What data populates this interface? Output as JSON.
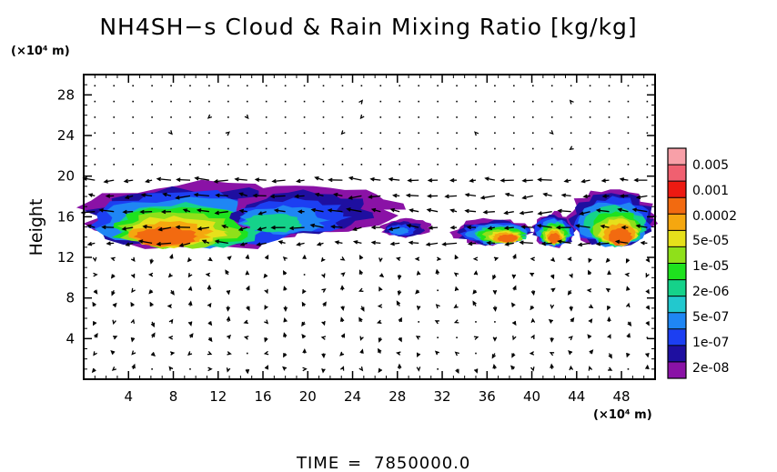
{
  "chart_data": {
    "type": "heatmap",
    "title": "NH4SH−s Cloud & Rain Mixing Ratio [kg/kg]",
    "ylabel": "Height",
    "x_unit": "(×10⁴ m)",
    "y_unit": "(×10⁴ m)",
    "xlim": [
      0,
      51
    ],
    "ylim": [
      0,
      30
    ],
    "x_ticks": [
      4,
      8,
      12,
      16,
      20,
      24,
      28,
      32,
      36,
      40,
      44,
      48
    ],
    "y_ticks": [
      4,
      8,
      12,
      16,
      20,
      24,
      28
    ],
    "colorbar": {
      "labels": [
        "0.005",
        "0.001",
        "0.0002",
        "5e-05",
        "1e-05",
        "2e-06",
        "5e-07",
        "1e-07",
        "2e-08"
      ],
      "colors": [
        "#8a12a6",
        "#1e0fa0",
        "#1c3ff2",
        "#1f86f4",
        "#22c8ce",
        "#15d28a",
        "#1ee21e",
        "#8fe01a",
        "#e6e01b",
        "#f5a70f",
        "#f26a10",
        "#ec1a12",
        "#f06070",
        "#f8a0a8"
      ]
    },
    "cloud_regions": [
      {
        "x_range": [
          0,
          21
        ],
        "y_range": [
          12.8,
          19.4
        ],
        "max_level": "0.0002",
        "core_x": [
          6,
          8
        ],
        "core_y": 13.8
      },
      {
        "x_range": [
          13,
          28
        ],
        "y_range": [
          14.2,
          19.2
        ],
        "max_level": "5e-06",
        "core_x": [
          15,
          17
        ],
        "core_y": 15
      },
      {
        "x_range": [
          26.5,
          31
        ],
        "y_range": [
          14,
          15.8
        ],
        "max_level": "2e-06",
        "core_x": [
          27,
          29
        ],
        "core_y": 14.5
      },
      {
        "x_range": [
          33,
          40
        ],
        "y_range": [
          13.2,
          15.8
        ],
        "max_level": "0.0002",
        "core_x": [
          37,
          39
        ],
        "core_y": 13.8
      },
      {
        "x_range": [
          40,
          44
        ],
        "y_range": [
          13,
          16.4
        ],
        "max_level": "0.0002",
        "core_x": [
          41,
          43
        ],
        "core_y": 13.8
      },
      {
        "x_range": [
          43,
          51
        ],
        "y_range": [
          13.2,
          18.8
        ],
        "max_level": "0.0002",
        "core_x": [
          47,
          49
        ],
        "core_y": 13.8
      }
    ],
    "vector_field": "wind vectors drawn over the domain",
    "grid": false,
    "legend": "colorbar right"
  },
  "footer": {
    "time_label": "TIME",
    "time_value": "7850000.0"
  }
}
